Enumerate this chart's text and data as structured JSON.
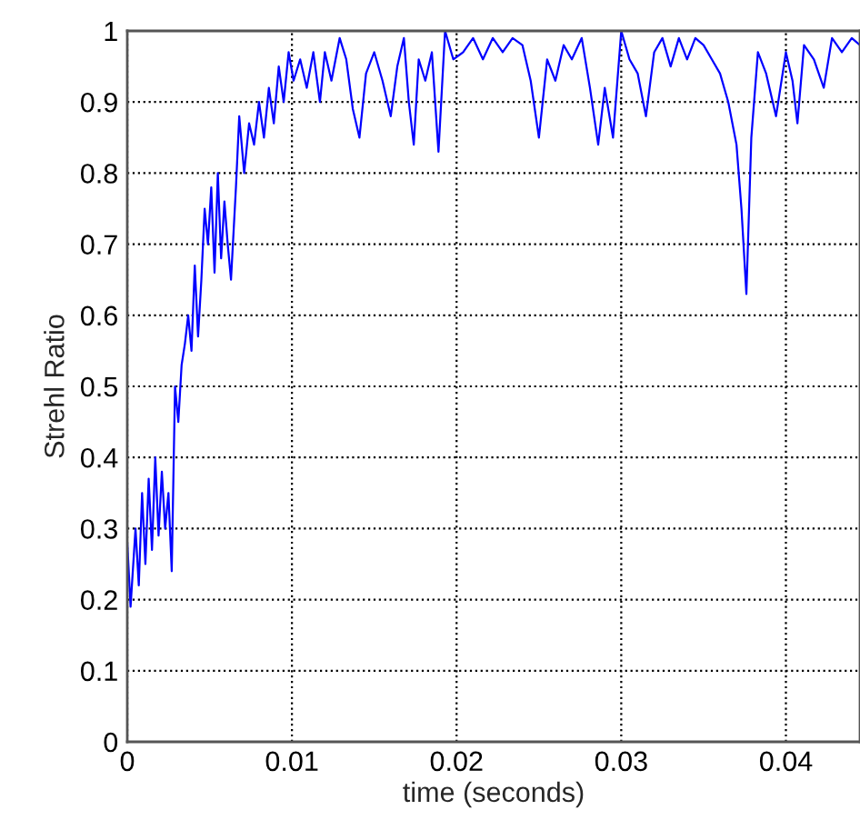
{
  "chart_data": {
    "type": "line",
    "xlabel": "time (seconds)",
    "ylabel": "Strehl Ratio",
    "xlim": [
      0,
      0.0445
    ],
    "ylim": [
      0,
      1
    ],
    "xticks": [
      0,
      0.01,
      0.02,
      0.03,
      0.04
    ],
    "yticks": [
      0,
      0.1,
      0.2,
      0.3,
      0.4,
      0.5,
      0.6,
      0.7,
      0.8,
      0.9,
      1
    ],
    "grid": true,
    "line_style": "solid",
    "marker": "none",
    "series": [
      {
        "color": "#0000ff",
        "x": [
          0,
          0.0002,
          0.0005,
          0.0007,
          0.0009,
          0.0011,
          0.0013,
          0.0015,
          0.0017,
          0.0019,
          0.0021,
          0.0023,
          0.0025,
          0.0027,
          0.0029,
          0.0031,
          0.0033,
          0.0035,
          0.0037,
          0.0039,
          0.0041,
          0.0043,
          0.0045,
          0.0047,
          0.0049,
          0.0051,
          0.0053,
          0.0055,
          0.0057,
          0.0059,
          0.0061,
          0.0063,
          0.0066,
          0.0068,
          0.0071,
          0.0074,
          0.0077,
          0.008,
          0.0083,
          0.0086,
          0.0089,
          0.0092,
          0.0095,
          0.0098,
          0.0101,
          0.0105,
          0.0109,
          0.0113,
          0.0117,
          0.012,
          0.0124,
          0.0129,
          0.0133,
          0.0137,
          0.0141,
          0.0145,
          0.015,
          0.0155,
          0.016,
          0.0164,
          0.0168,
          0.0171,
          0.0174,
          0.0177,
          0.0181,
          0.0185,
          0.0189,
          0.0193,
          0.0198,
          0.0204,
          0.021,
          0.0216,
          0.0222,
          0.0228,
          0.0234,
          0.024,
          0.0245,
          0.025,
          0.0255,
          0.026,
          0.0265,
          0.027,
          0.0276,
          0.0281,
          0.0286,
          0.029,
          0.0295,
          0.03,
          0.0305,
          0.031,
          0.0315,
          0.032,
          0.0325,
          0.033,
          0.0335,
          0.034,
          0.0345,
          0.035,
          0.0355,
          0.036,
          0.0365,
          0.037,
          0.0373,
          0.0376,
          0.0379,
          0.0383,
          0.0388,
          0.0394,
          0.04,
          0.0404,
          0.0407,
          0.0411,
          0.0417,
          0.0423,
          0.0428,
          0.0434,
          0.044,
          0.0445
        ],
        "values": [
          0.28,
          0.19,
          0.3,
          0.22,
          0.35,
          0.25,
          0.37,
          0.27,
          0.4,
          0.29,
          0.38,
          0.3,
          0.35,
          0.24,
          0.5,
          0.45,
          0.53,
          0.56,
          0.6,
          0.55,
          0.67,
          0.57,
          0.65,
          0.75,
          0.7,
          0.78,
          0.66,
          0.8,
          0.68,
          0.76,
          0.7,
          0.65,
          0.78,
          0.88,
          0.8,
          0.87,
          0.84,
          0.9,
          0.85,
          0.92,
          0.87,
          0.95,
          0.9,
          0.97,
          0.93,
          0.96,
          0.92,
          0.97,
          0.9,
          0.97,
          0.93,
          0.99,
          0.96,
          0.89,
          0.85,
          0.94,
          0.97,
          0.93,
          0.88,
          0.95,
          0.99,
          0.9,
          0.84,
          0.96,
          0.93,
          0.97,
          0.83,
          1.0,
          0.96,
          0.97,
          0.99,
          0.96,
          0.99,
          0.97,
          0.99,
          0.98,
          0.93,
          0.85,
          0.96,
          0.93,
          0.98,
          0.96,
          0.99,
          0.92,
          0.84,
          0.92,
          0.85,
          1.0,
          0.96,
          0.94,
          0.88,
          0.97,
          0.99,
          0.95,
          0.99,
          0.96,
          0.99,
          0.98,
          0.96,
          0.94,
          0.9,
          0.84,
          0.75,
          0.63,
          0.85,
          0.97,
          0.94,
          0.88,
          0.97,
          0.93,
          0.87,
          0.98,
          0.96,
          0.92,
          0.99,
          0.97,
          0.99,
          0.98
        ]
      }
    ]
  }
}
